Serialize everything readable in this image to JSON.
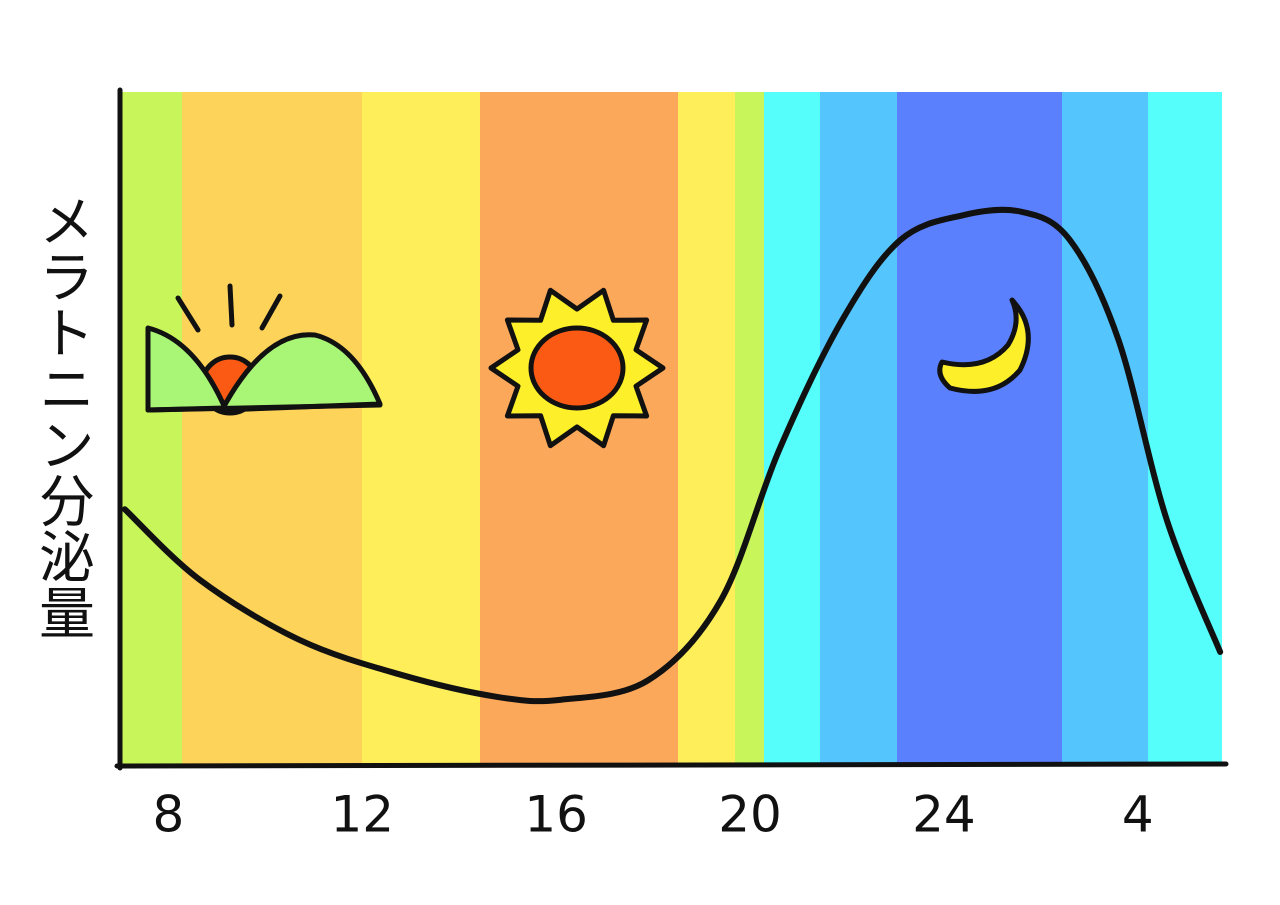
{
  "chart_data": {
    "type": "line",
    "y_label": "メラトニン分泌量",
    "x": [
      7.1,
      8.65,
      10.7,
      12.8,
      14.8,
      16.1,
      17.9,
      19.4,
      20.6,
      21.9,
      23.1,
      24.4,
      25.6,
      26.6,
      27.6,
      28.6,
      29.7
    ],
    "values": [
      38,
      27.5,
      18.6,
      13.4,
      10.1,
      9.7,
      12.6,
      24.5,
      46.8,
      66.1,
      78,
      81.7,
      82.2,
      78,
      63.2,
      36.4,
      16.8
    ],
    "color": "#111111",
    "xlim": [
      7,
      29.8
    ],
    "xticks": [
      8,
      12,
      16,
      20,
      24,
      {
        "value": 28,
        "label": "4"
      }
    ],
    "ylim": [
      0,
      100
    ],
    "grid": false
  }
}
